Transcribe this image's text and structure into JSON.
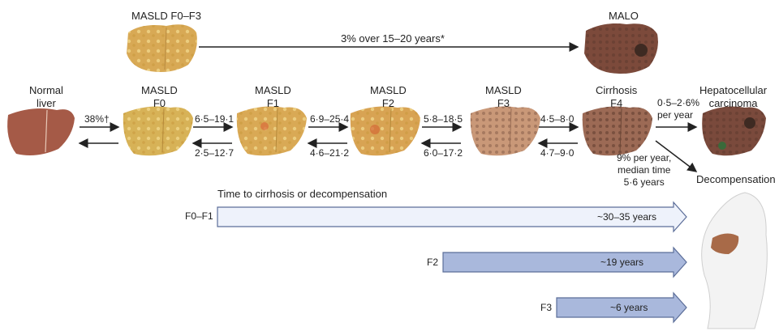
{
  "top": {
    "left_label": "MASLD F0–F3",
    "right_label": "MALO",
    "arrow_label": "3% over 15–20 years*"
  },
  "stages": [
    {
      "line1": "Normal",
      "line2": "liver",
      "color": "#a55a47"
    },
    {
      "line1": "MASLD",
      "line2": "F0",
      "color": "#d7b257"
    },
    {
      "line1": "MASLD",
      "line2": "F1",
      "color": "#d9a955"
    },
    {
      "line1": "MASLD",
      "line2": "F2",
      "color": "#d8a353"
    },
    {
      "line1": "MASLD",
      "line2": "F3",
      "color": "#c79672"
    },
    {
      "line1": "Cirrhosis",
      "line2": "F4",
      "color": "#9c6a55"
    },
    {
      "line1": "Hepatocellular",
      "line2": "carcinoma",
      "color": "#7a4a3c"
    }
  ],
  "forward": [
    "38%†",
    "6·5–19·1",
    "6·9–25·4",
    "5·8–18·5",
    "4·5–8·0",
    "0·5–2·6%"
  ],
  "forward_extra": "per year",
  "backward": [
    "",
    "2·5–12·7",
    "4·6–21·2",
    "6·0–17·2",
    "4·7–9·0"
  ],
  "decompensation": {
    "rate_lines": [
      "9% per year,",
      "median time",
      "5·6 years"
    ],
    "label": "Decompensation"
  },
  "timeline": {
    "title": "Time to cirrhosis or decompensation",
    "bars": [
      {
        "label": "F0–F1",
        "text": "~30–35 years",
        "fill": "#eef2fb"
      },
      {
        "label": "F2",
        "text": "~19 years",
        "fill": "#a9b8dc"
      },
      {
        "label": "F3",
        "text": "~6 years",
        "fill": "#a9b8dc"
      }
    ]
  }
}
